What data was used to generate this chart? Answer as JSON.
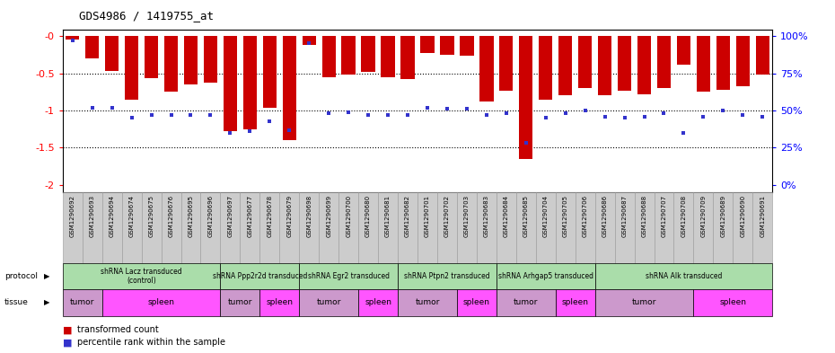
{
  "title": "GDS4986 / 1419755_at",
  "samples": [
    "GSM1290692",
    "GSM1290693",
    "GSM1290694",
    "GSM1290674",
    "GSM1290675",
    "GSM1290676",
    "GSM1290695",
    "GSM1290696",
    "GSM1290697",
    "GSM1290677",
    "GSM1290678",
    "GSM1290679",
    "GSM1290698",
    "GSM1290699",
    "GSM1290700",
    "GSM1290680",
    "GSM1290681",
    "GSM1290682",
    "GSM1290701",
    "GSM1290702",
    "GSM1290703",
    "GSM1290683",
    "GSM1290684",
    "GSM1290685",
    "GSM1290704",
    "GSM1290705",
    "GSM1290706",
    "GSM1290686",
    "GSM1290687",
    "GSM1290688",
    "GSM1290707",
    "GSM1290708",
    "GSM1290709",
    "GSM1290689",
    "GSM1290690",
    "GSM1290691"
  ],
  "bar_values": [
    -0.05,
    -0.3,
    -0.47,
    -0.85,
    -0.57,
    -0.75,
    -0.65,
    -0.63,
    -1.28,
    -1.25,
    -0.97,
    -1.4,
    -0.12,
    -0.55,
    -0.52,
    -0.48,
    -0.55,
    -0.58,
    -0.23,
    -0.25,
    -0.27,
    -0.88,
    -0.73,
    -1.65,
    -0.86,
    -0.8,
    -0.7,
    -0.8,
    -0.73,
    -0.78,
    -0.7,
    -0.38,
    -0.75,
    -0.72,
    -0.68,
    -0.52
  ],
  "percentile_values": [
    97,
    52,
    52,
    45,
    47,
    47,
    47,
    47,
    35,
    36,
    43,
    37,
    95,
    48,
    49,
    47,
    47,
    47,
    52,
    51,
    51,
    47,
    48,
    28,
    45,
    48,
    50,
    46,
    45,
    46,
    48,
    35,
    46,
    50,
    47,
    46
  ],
  "bar_color": "#cc0000",
  "percentile_color": "#3333cc",
  "ylim_left": [
    -2.05,
    0.05
  ],
  "yticks_left": [
    0,
    -0.5,
    -1.0,
    -1.5,
    -2.0
  ],
  "ytick_labels_left": [
    "-0",
    "-0.5",
    "-1",
    "-1.5",
    "-2"
  ],
  "yticks_right": [
    0,
    25,
    50,
    75,
    100
  ],
  "ytick_labels_right": [
    "0%",
    "25%",
    "50%",
    "75%",
    "100%"
  ],
  "protocols": [
    {
      "label": "shRNA Lacz transduced\n(control)",
      "start": 0,
      "end": 7
    },
    {
      "label": "shRNA Ppp2r2d transduced",
      "start": 8,
      "end": 11
    },
    {
      "label": "shRNA Egr2 transduced",
      "start": 12,
      "end": 16
    },
    {
      "label": "shRNA Ptpn2 transduced",
      "start": 17,
      "end": 21
    },
    {
      "label": "shRNA Arhgap5 transduced",
      "start": 22,
      "end": 26
    },
    {
      "label": "shRNA Alk transduced",
      "start": 27,
      "end": 35
    }
  ],
  "tissues": [
    {
      "label": "tumor",
      "start": 0,
      "end": 1
    },
    {
      "label": "spleen",
      "start": 2,
      "end": 7
    },
    {
      "label": "tumor",
      "start": 8,
      "end": 9
    },
    {
      "label": "spleen",
      "start": 10,
      "end": 11
    },
    {
      "label": "tumor",
      "start": 12,
      "end": 14
    },
    {
      "label": "spleen",
      "start": 15,
      "end": 16
    },
    {
      "label": "tumor",
      "start": 17,
      "end": 19
    },
    {
      "label": "spleen",
      "start": 20,
      "end": 21
    },
    {
      "label": "tumor",
      "start": 22,
      "end": 24
    },
    {
      "label": "spleen",
      "start": 25,
      "end": 26
    },
    {
      "label": "tumor",
      "start": 27,
      "end": 31
    },
    {
      "label": "spleen",
      "start": 32,
      "end": 35
    }
  ],
  "protocol_color": "#aaddaa",
  "tumor_color": "#cc99cc",
  "spleen_color": "#ff55ff",
  "sample_bg_color": "#cccccc",
  "grid_color": "#000000",
  "bg_color": "#ffffff"
}
